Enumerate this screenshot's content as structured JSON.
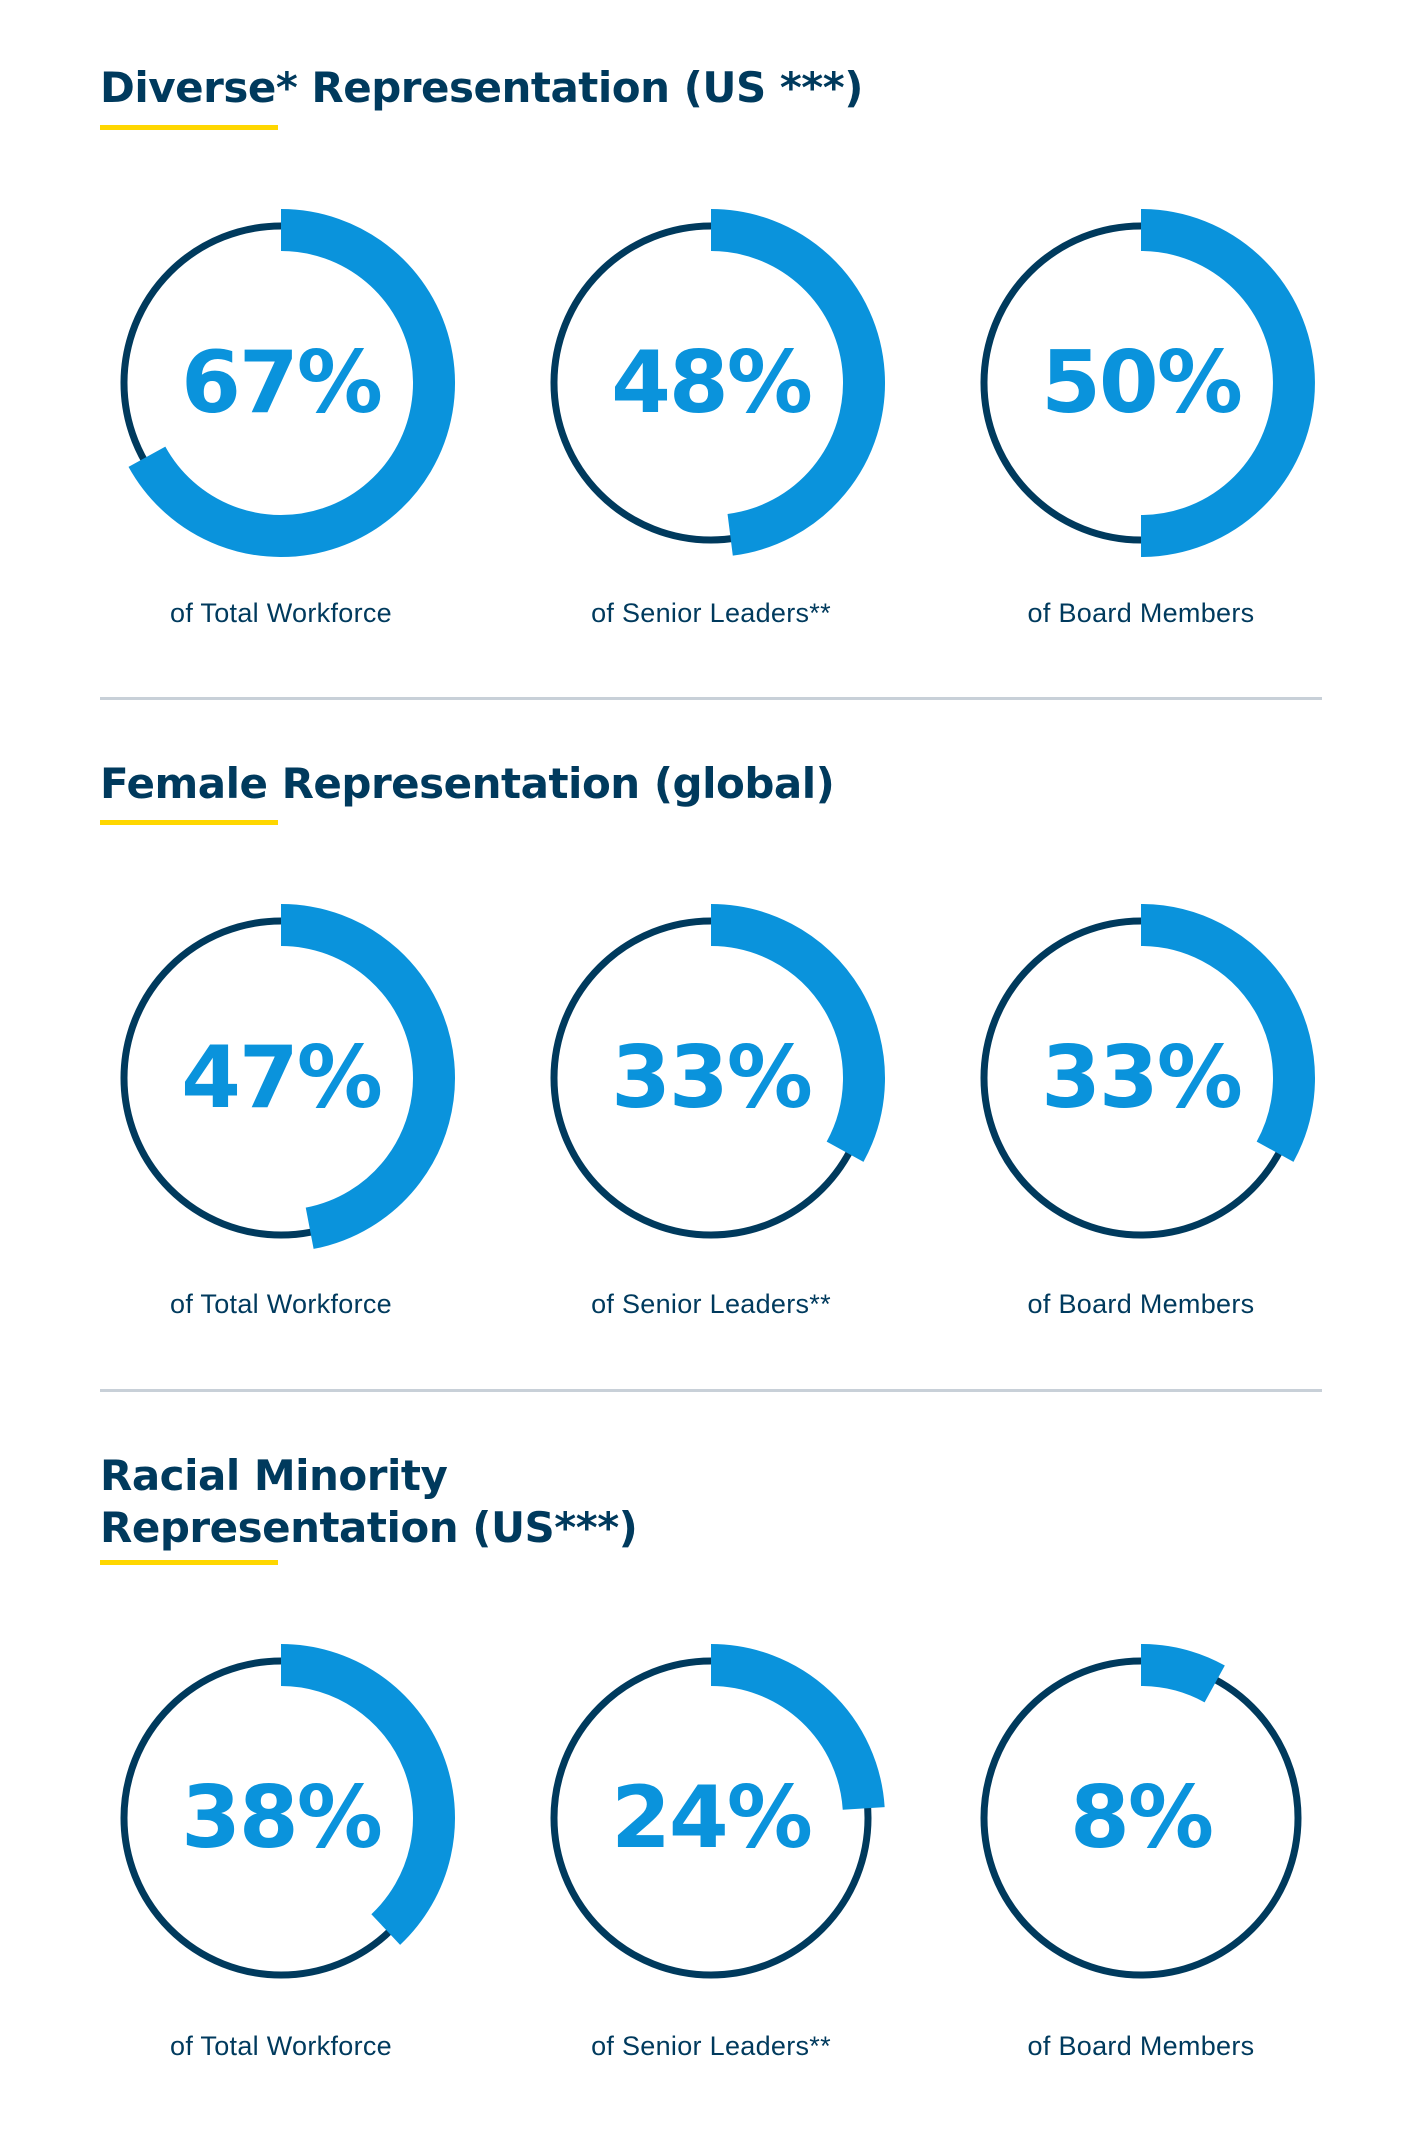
{
  "colors": {
    "accent": "#0a93dc",
    "base_ring": "#003a5d",
    "title": "#003a5d",
    "underline": "#ffd700",
    "divider": "#c8d0d8"
  },
  "chart_data": [
    {
      "type": "donut",
      "title": "Diverse* Representation (US ***)",
      "categories": [
        "of Total Workforce",
        "of Senior Leaders**",
        "of Board Members"
      ],
      "values": [
        67,
        48,
        50
      ],
      "labels": [
        "67%",
        "48%",
        "50%"
      ]
    },
    {
      "type": "donut",
      "title": "Female Representation (global)",
      "categories": [
        "of Total Workforce",
        "of Senior Leaders**",
        "of Board Members"
      ],
      "values": [
        47,
        33,
        33
      ],
      "labels": [
        "47%",
        "33%",
        "33%"
      ]
    },
    {
      "type": "donut",
      "title": "Racial Minority Representation (US***)",
      "title_lines": [
        "Racial Minority",
        "Representation (US***)"
      ],
      "categories": [
        "of Total Workforce",
        "of Senior Leaders**",
        "of Board Members"
      ],
      "values": [
        38,
        24,
        8
      ],
      "labels": [
        "38%",
        "24%",
        "8%"
      ]
    }
  ]
}
